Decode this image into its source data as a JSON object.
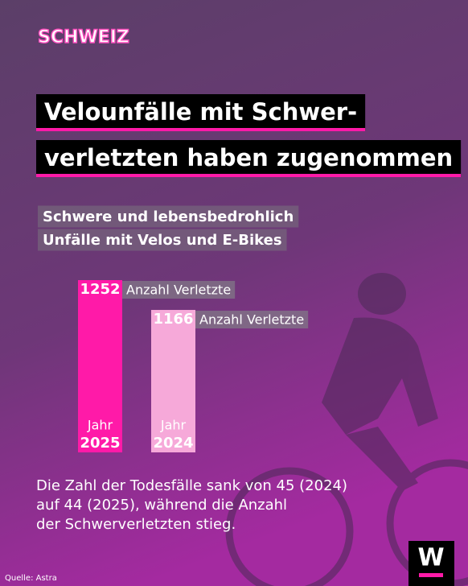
{
  "chart_data": {
    "type": "bar",
    "kicker": "SCHWEIZ",
    "title_lines": [
      "Velounfälle mit Schwer-",
      "verletzten haben zugenommen"
    ],
    "subtitle_lines": [
      "Schwere und lebensbedrohlich",
      "Unfälle mit Velos und E-Bikes"
    ],
    "categories": [
      "2025",
      "2024"
    ],
    "category_prefix": "Jahr",
    "values": [
      1252,
      1166
    ],
    "value_caption": "Anzahl Verletzte",
    "colors": [
      "#ff1aa8",
      "#f6a9d9"
    ],
    "ylim": [
      755,
      1252
    ],
    "annotation_lines": [
      "Die Zahl der Todesfälle sank von 45 (2024)",
      "auf 44 (2025), während die Anzahl",
      "der Schwerverletzten stieg."
    ],
    "source": "Quelle: Astra",
    "logo": "W"
  }
}
